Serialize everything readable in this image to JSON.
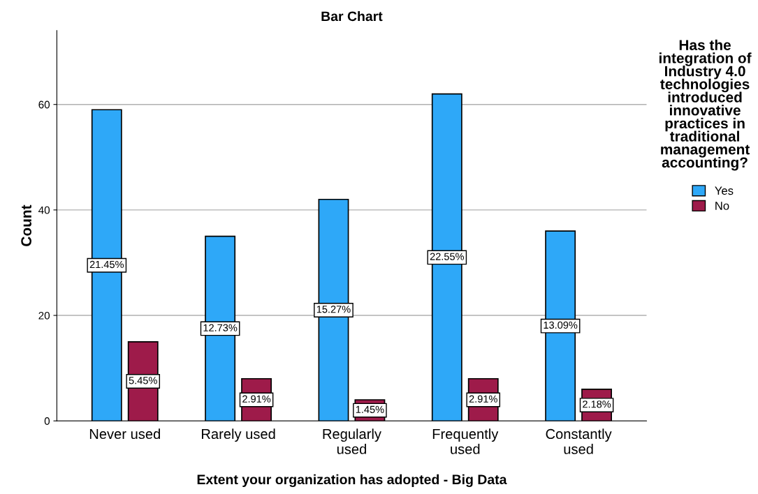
{
  "chart_data": {
    "type": "bar",
    "title": "Bar Chart",
    "xlabel": "Extent your organization has adopted - Big Data",
    "ylabel": "Count",
    "legend_title": "Has the integration of Industry 4.0 technologies introduced innovative practices in traditional management accounting?",
    "categories": [
      "Never used",
      "Rarely used",
      "Regularly\nused",
      "Frequently\nused",
      "Constantly\nused"
    ],
    "series": [
      {
        "name": "Yes",
        "color": "#2ea8f8",
        "values": [
          59,
          35,
          42,
          62,
          36
        ]
      },
      {
        "name": "No",
        "color": "#9e1b4a",
        "values": [
          15,
          8,
          4,
          8,
          6
        ]
      }
    ],
    "annotations": [
      "21.45%",
      "12.73%",
      "15.27%",
      "22.55%",
      "13.09%",
      "5.45%",
      "2.91%",
      "1.45%",
      "2.91%",
      "2.18%"
    ],
    "ylim": [
      0,
      74
    ],
    "yticks": [
      0,
      20,
      40,
      60
    ],
    "grid": "y",
    "legend": "right"
  }
}
